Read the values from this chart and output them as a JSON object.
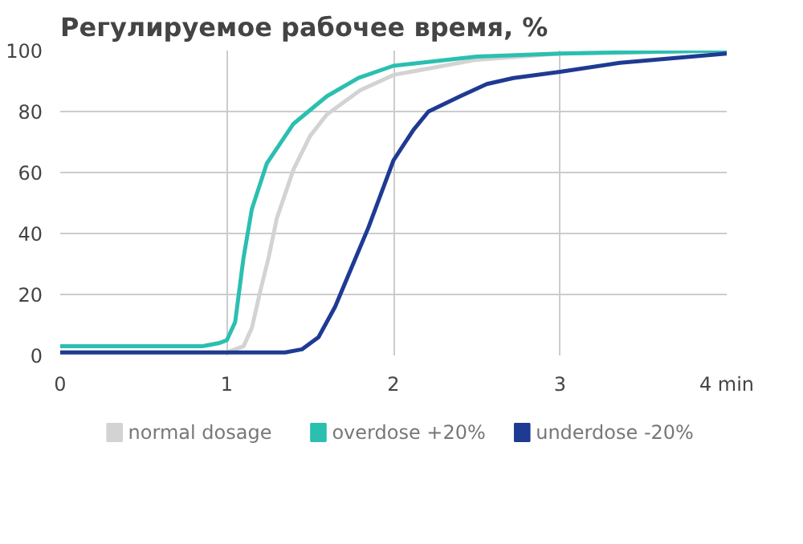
{
  "chart_data": {
    "type": "line",
    "title": "Регулируемое рабочее время, %",
    "xlim": [
      0,
      4
    ],
    "ylim": [
      0,
      100
    ],
    "xticks": [
      0,
      1,
      2,
      3,
      {
        "value": 4,
        "label": "4 min"
      }
    ],
    "yticks": [
      0,
      20,
      40,
      60,
      80,
      100
    ],
    "grid": true,
    "legend": "bottom",
    "marker": "none",
    "line_style": "solid",
    "series": [
      {
        "name": "normal dosage",
        "color": "#d3d3d3",
        "x": [
          0,
          0.5,
          1.0,
          1.1,
          1.15,
          1.2,
          1.25,
          1.3,
          1.35,
          1.4,
          1.5,
          1.6,
          1.8,
          2.0,
          2.5,
          3.0,
          4.0
        ],
        "values": [
          1,
          1,
          1,
          3,
          9,
          21,
          32,
          45,
          53,
          61,
          72,
          79,
          87,
          92,
          97,
          99,
          100
        ]
      },
      {
        "name": "overdose +20%",
        "color": "#2bbfb0",
        "x": [
          0,
          0.5,
          0.85,
          0.95,
          1.0,
          1.05,
          1.1,
          1.15,
          1.24,
          1.4,
          1.6,
          1.79,
          2.0,
          2.5,
          3.0,
          4.0
        ],
        "values": [
          3,
          3,
          3,
          4,
          5,
          11,
          32,
          48,
          63,
          76,
          85,
          91,
          95,
          98,
          99,
          100
        ]
      },
      {
        "name": "underdose -20%",
        "color": "#1f3a93",
        "x": [
          0,
          0.5,
          1.0,
          1.35,
          1.45,
          1.55,
          1.65,
          1.75,
          1.85,
          2.0,
          2.12,
          2.21,
          2.4,
          2.56,
          2.72,
          3.0,
          3.36,
          4.0
        ],
        "values": [
          1,
          1,
          1,
          1,
          2,
          6,
          16,
          29,
          42,
          64,
          74,
          80,
          85,
          89,
          91,
          93,
          96,
          99
        ]
      }
    ]
  }
}
